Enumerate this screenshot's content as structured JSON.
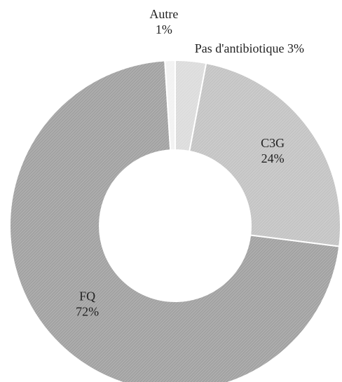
{
  "chart_data": {
    "type": "donut",
    "categories": [
      "Pas d'antibiotique",
      "C3G",
      "FQ",
      "Autre"
    ],
    "values": [
      3,
      24,
      72,
      1
    ],
    "value_labels": [
      "3%",
      "24%",
      "72%",
      "1%"
    ],
    "colors": [
      "#dcdcdc",
      "#c4c4c4",
      "#a2a2a2",
      "#f2f2f2"
    ]
  }
}
